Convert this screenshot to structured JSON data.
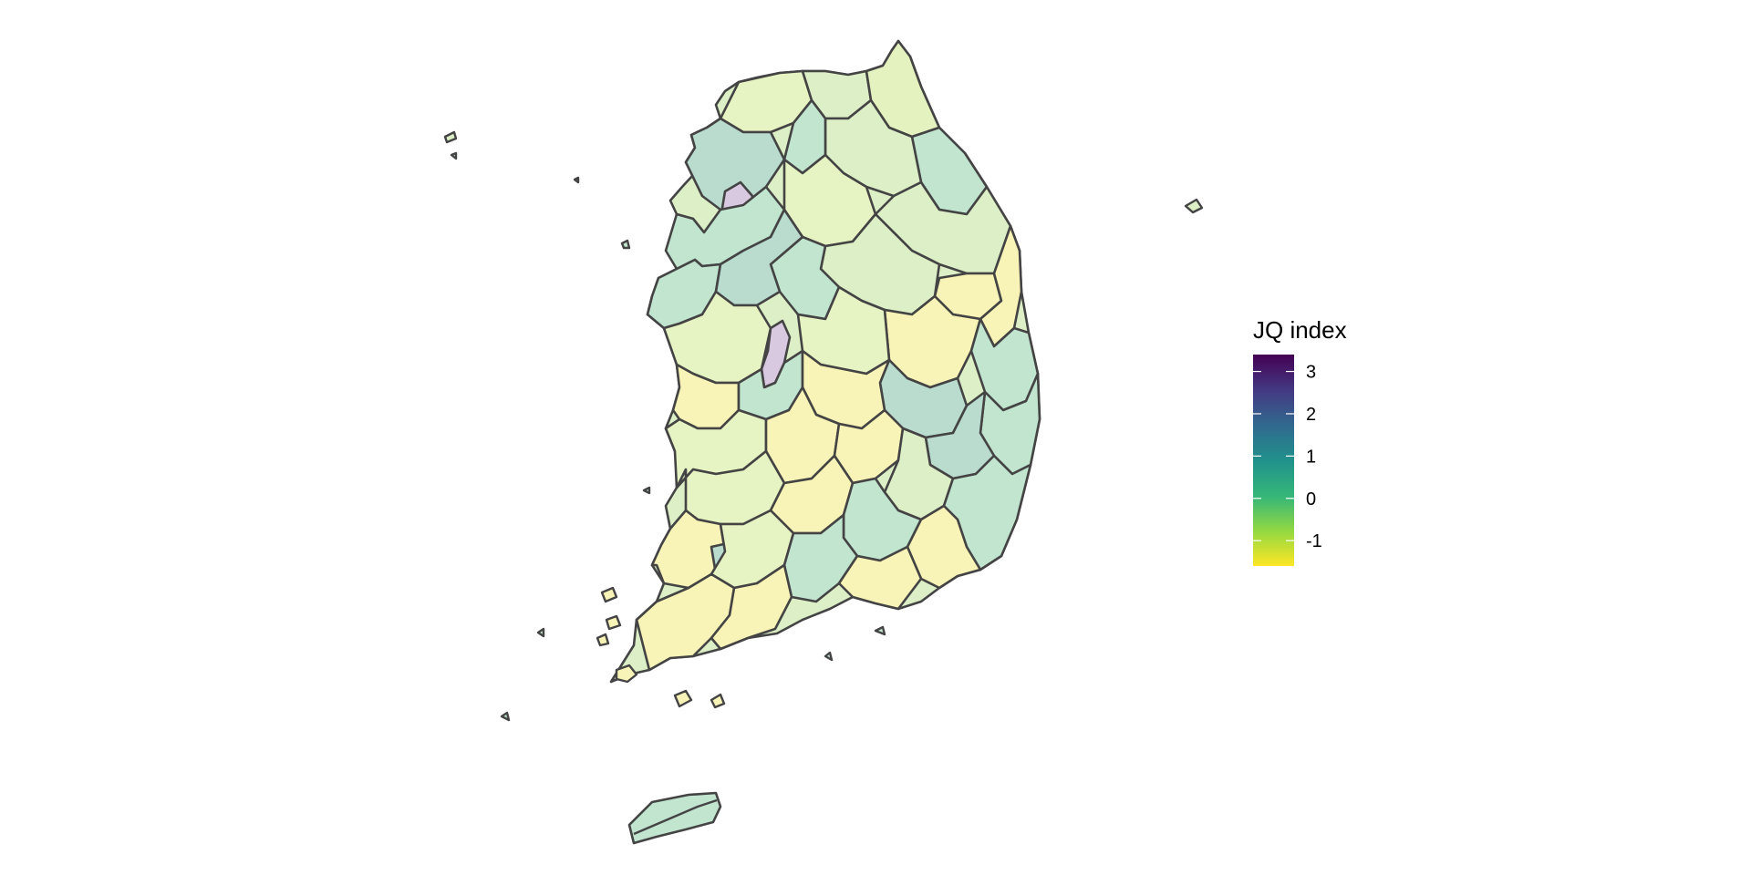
{
  "legend": {
    "title": "JQ index",
    "ticks": [
      {
        "value": 3,
        "label": "3"
      },
      {
        "value": 2,
        "label": "2"
      },
      {
        "value": 1,
        "label": "1"
      },
      {
        "value": 0,
        "label": "0"
      },
      {
        "value": -1,
        "label": "-1"
      }
    ],
    "range": [
      -1.6,
      3.4
    ],
    "palette": [
      "#fde725",
      "#90d743",
      "#35b779",
      "#21918c",
      "#31688e",
      "#443983",
      "#440154"
    ]
  },
  "map": {
    "fill_opacity": 0.3,
    "border_color": "#444444",
    "background": "#ffffff"
  }
}
